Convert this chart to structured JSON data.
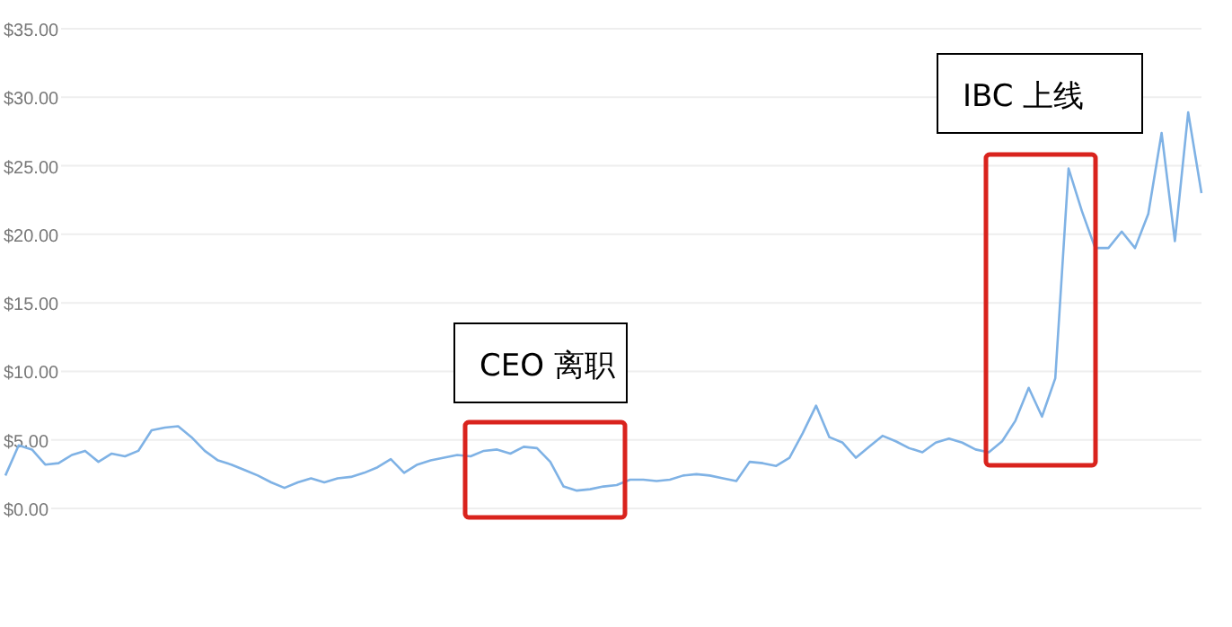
{
  "chart_data": {
    "type": "line",
    "categories": [
      null,
      null,
      null,
      null,
      null,
      null,
      null,
      null,
      null,
      null,
      null,
      null,
      null,
      null,
      null,
      null,
      null,
      null,
      null,
      null,
      null,
      null,
      null,
      null,
      null,
      null,
      null,
      null,
      null,
      null,
      null,
      null,
      null,
      null,
      null,
      null,
      null,
      null,
      null,
      null,
      null,
      null,
      null,
      null,
      null,
      null,
      null,
      null,
      null,
      null,
      null,
      null,
      null,
      null,
      null,
      null,
      null,
      null,
      null,
      null,
      null,
      null,
      null,
      null,
      null,
      null,
      null,
      null,
      null,
      null,
      null,
      null,
      null,
      null,
      null,
      null,
      null,
      null,
      null,
      null,
      null,
      null,
      null,
      null,
      null,
      null,
      null,
      null,
      null,
      null,
      null
    ],
    "series": [
      {
        "color": "#7fb2e5",
        "values": [
          2.4,
          4.6,
          4.3,
          3.2,
          3.3,
          3.9,
          4.2,
          3.4,
          4.0,
          3.8,
          4.2,
          5.7,
          5.9,
          6.0,
          5.2,
          4.2,
          3.5,
          3.2,
          2.8,
          2.4,
          1.9,
          1.5,
          1.9,
          2.2,
          1.9,
          2.2,
          2.3,
          2.6,
          3.0,
          3.6,
          2.6,
          3.2,
          3.5,
          3.7,
          3.9,
          3.8,
          4.2,
          4.3,
          4.0,
          4.5,
          4.4,
          3.4,
          1.6,
          1.3,
          1.4,
          1.6,
          1.7,
          2.1,
          2.1,
          2.0,
          2.1,
          2.4,
          2.5,
          2.4,
          2.2,
          2.0,
          3.4,
          3.3,
          3.1,
          3.7,
          5.5,
          7.5,
          5.2,
          4.8,
          3.7,
          4.5,
          5.3,
          4.9,
          4.4,
          4.1,
          4.8,
          5.1,
          4.8,
          4.3,
          4.1,
          4.9,
          6.4,
          8.8,
          6.7,
          9.5,
          24.8,
          21.7,
          19.0,
          19.0,
          20.2,
          19.0,
          21.5,
          27.4,
          19.5,
          28.9,
          23.0
        ]
      }
    ],
    "ylim": [
      0,
      35
    ],
    "yticks": [
      {
        "value": 0,
        "label": "$0.00"
      },
      {
        "value": 5,
        "label": "$5.00"
      },
      {
        "value": 10,
        "label": "$10.00"
      },
      {
        "value": 15,
        "label": "$15.00"
      },
      {
        "value": 20,
        "label": "$20.00"
      },
      {
        "value": 25,
        "label": "$25.00"
      },
      {
        "value": 30,
        "label": "$30.00"
      },
      {
        "value": 35,
        "label": "$35.00"
      }
    ],
    "grid": "y",
    "annotations": [
      "CEO 离职",
      "IBC 上线"
    ]
  }
}
